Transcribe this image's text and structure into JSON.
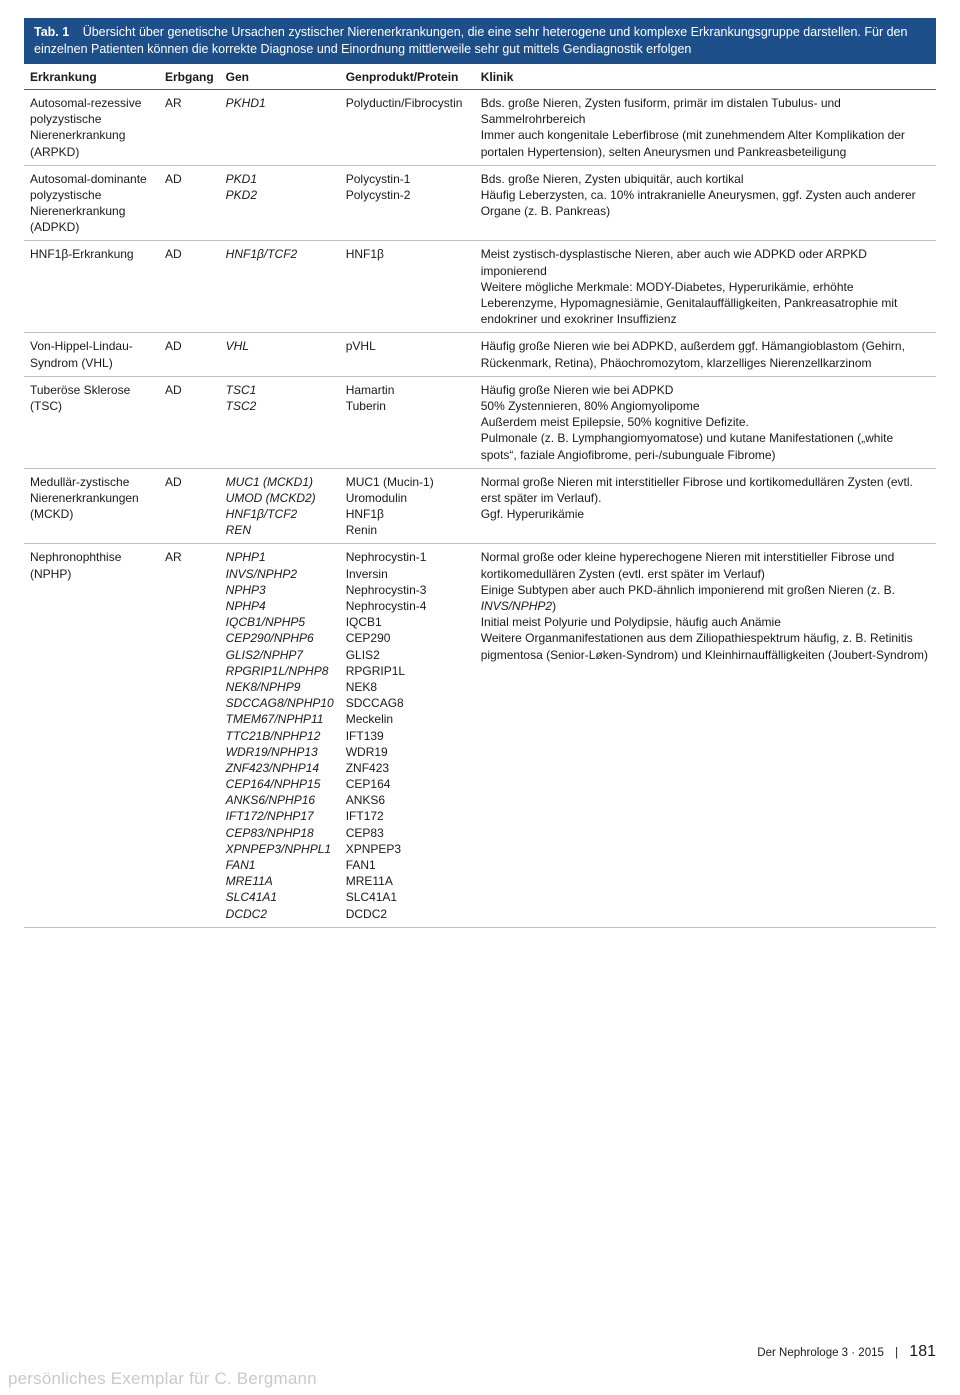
{
  "header": {
    "label": "Tab. 1",
    "caption": "Übersicht über genetische Ursachen zystischer Nierenerkrankungen, die eine sehr heterogene und komplexe Erkrankungsgruppe darstellen. Für den einzelnen Patienten können die korrekte Diagnose und Einordnung mittlerweile sehr gut mittels Gendiagnostik erfolgen"
  },
  "columns": [
    "Erkrankung",
    "Erbgang",
    "Gen",
    "Genprodukt/Protein",
    "Klinik"
  ],
  "rows": [
    {
      "disease": "Autosomal-rezessive polyzystische Nierenerkrankung (ARPKD)",
      "inherit": "AR",
      "gen": "PKHD1",
      "protein": "Polyductin/Fibrocystin",
      "clinic": "Bds. große Nieren, Zysten fusiform, primär im distalen Tubulus- und Sammelrohrbereich\nImmer auch kongenitale Leberfibrose (mit zunehmendem Alter Komplikation der portalen Hypertension), selten Aneurysmen und Pankreasbeteiligung"
    },
    {
      "disease": "Autosomal-dominante polyzystische Nierenerkrankung (ADPKD)",
      "inherit": "AD",
      "gen": "PKD1\nPKD2",
      "protein": "Polycystin-1\nPolycystin-2",
      "clinic": "Bds. große Nieren, Zysten ubiquitär, auch kortikal\nHäufig Leberzysten, ca. 10% intrakranielle Aneurysmen, ggf. Zysten auch anderer Organe (z. B. Pankreas)"
    },
    {
      "disease": "HNF1β-Erkrankung",
      "inherit": "AD",
      "gen": "HNF1β/TCF2",
      "protein": "HNF1β",
      "clinic": "Meist zystisch-dysplastische Nieren, aber auch wie ADPKD oder ARPKD imponierend\nWeitere mögliche Merkmale: MODY-Diabetes, Hyperurikämie, erhöhte Leberenzyme, Hypomagnesiämie, Genitalauffälligkeiten, Pankreasatrophie mit endokriner und exokriner Insuffizienz"
    },
    {
      "disease": "Von-Hippel-Lindau-Syndrom (VHL)",
      "inherit": "AD",
      "gen": "VHL",
      "protein": "pVHL",
      "clinic": "Häufig große Nieren wie bei ADPKD, außerdem ggf. Hämangioblastom (Gehirn, Rückenmark, Retina), Phäochromozytom, klarzelliges Nierenzellkarzinom"
    },
    {
      "disease": "Tuberöse Sklerose (TSC)",
      "inherit": "AD",
      "gen": "TSC1\nTSC2",
      "protein": "Hamartin\nTuberin",
      "clinic": "Häufig große Nieren wie bei ADPKD\n50% Zystennieren, 80% Angiomyolipome\nAußerdem meist Epilepsie, 50% kognitive Defizite.\nPulmonale (z. B. Lymphangiomyomatose) und kutane Manifestationen („white spots“, faziale Angiofibrome, peri-/subunguale Fibrome)"
    },
    {
      "disease": "Medullär-zystische Nierenerkrankungen (MCKD)",
      "inherit": "AD",
      "gen": "MUC1 (MCKD1)\nUMOD (MCKD2)\nHNF1β/TCF2\nREN",
      "protein": "MUC1 (Mucin-1)\nUromodulin\nHNF1β\nRenin",
      "clinic": "Normal große Nieren mit interstitieller Fibrose und kortikomedullären Zysten (evtl. erst später im Verlauf).\nGgf. Hyperurikämie"
    },
    {
      "disease": "Nephronophthise (NPHP)",
      "inherit": "AR",
      "gen": "NPHP1\nINVS/NPHP2\nNPHP3\nNPHP4\nIQCB1/NPHP5\nCEP290/NPHP6\nGLIS2/NPHP7\nRPGRIP1L/NPHP8\nNEK8/NPHP9\nSDCCAG8/NPHP10\nTMEM67/NPHP11\nTTC21B/NPHP12\nWDR19/NPHP13\nZNF423/NPHP14\nCEP164/NPHP15\nANKS6/NPHP16\nIFT172/NPHP17\nCEP83/NPHP18\nXPNPEP3/NPHPL1\nFAN1\nMRE11A\nSLC41A1\nDCDC2",
      "protein": "Nephrocystin-1\nInversin\nNephrocystin-3\nNephrocystin-4\nIQCB1\nCEP290\nGLIS2\nRPGRIP1L\nNEK8\nSDCCAG8\nMeckelin\nIFT139\nWDR19\nZNF423\nCEP164\nANKS6\nIFT172\nCEP83\nXPNPEP3\nFAN1\nMRE11A\nSLC41A1\nDCDC2",
      "clinic": "Normal große oder kleine hyperechogene Nieren mit interstitieller Fibrose und kortikomedullären Zysten (evtl. erst später im Verlauf)\nEinige Subtypen aber auch PKD-ähnlich imponierend mit großen Nieren (z. B. INVS/NPHP2)\nInitial meist Polyurie und Polydipsie, häufig auch Anämie\nWeitere Organmanifestationen aus dem Ziliopathiespektrum häufig, z. B. Retinitis pigmentosa (Senior-Løken-Syndrom) und Kleinhirnauffälligkeiten (Joubert-Syndrom)"
    }
  ],
  "footer": {
    "journal": "Der Nephrologe 3 · 2015",
    "page": "181"
  },
  "watermark": "persönliches Exemplar für C. Bergmann",
  "colors": {
    "header_bg": "#1d4f8b",
    "header_text": "#ffffff",
    "row_border": "#bfbfbf",
    "thead_border": "#5b5b5b",
    "watermark": "#c9c9c9"
  }
}
